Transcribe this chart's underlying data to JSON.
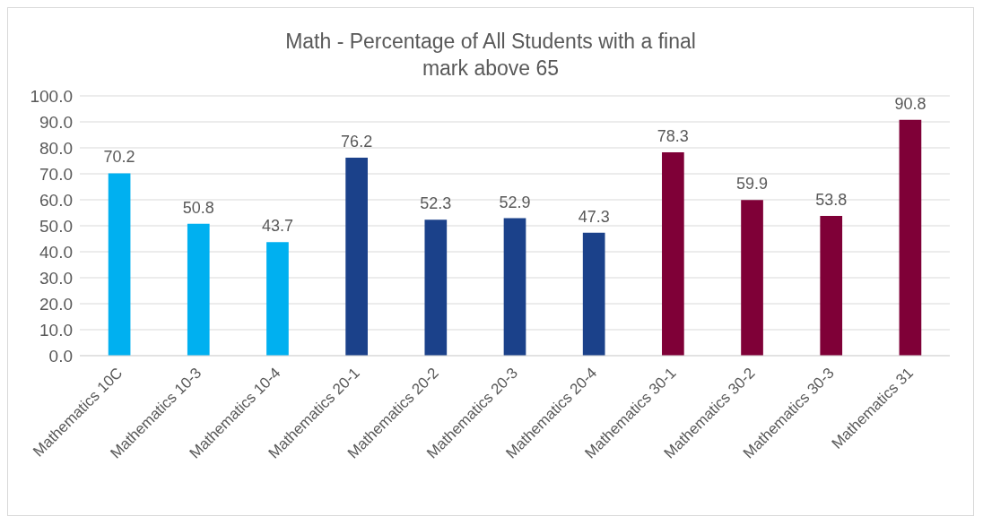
{
  "chart_data": {
    "type": "bar",
    "title": "Math - Percentage of All Students with a final mark above 65",
    "categories": [
      "Mathematics 10C",
      "Mathematics 10-3",
      "Mathematics 10-4",
      "Mathematics 20-1",
      "Mathematics 20-2",
      "Mathematics 20-3",
      "Mathematics 20-4",
      "Mathematics 30-1",
      "Mathematics 30-2",
      "Mathematics 30-3",
      "Mathematics 31"
    ],
    "values": [
      70.2,
      50.8,
      43.7,
      76.2,
      52.3,
      52.9,
      47.3,
      78.3,
      59.9,
      53.8,
      90.8
    ],
    "colors": [
      "#00b0f0",
      "#00b0f0",
      "#00b0f0",
      "#1b418a",
      "#1b418a",
      "#1b418a",
      "#1b418a",
      "#7f0037",
      "#7f0037",
      "#7f0037",
      "#7f0037"
    ],
    "ylim": [
      0,
      100
    ],
    "yticks": [
      {
        "value": 0,
        "label": "0.0"
      },
      {
        "value": 10,
        "label": "10.0"
      },
      {
        "value": 20,
        "label": "20.0"
      },
      {
        "value": 30,
        "label": "30.0"
      },
      {
        "value": 40,
        "label": "40.0"
      },
      {
        "value": 50,
        "label": "50.0"
      },
      {
        "value": 60,
        "label": "60.0"
      },
      {
        "value": 70,
        "label": "70.0"
      },
      {
        "value": 80,
        "label": "80.0"
      },
      {
        "value": 90,
        "label": "90.0"
      },
      {
        "value": 100,
        "label": "100.0"
      }
    ],
    "grid": "y",
    "data_labels": true
  }
}
